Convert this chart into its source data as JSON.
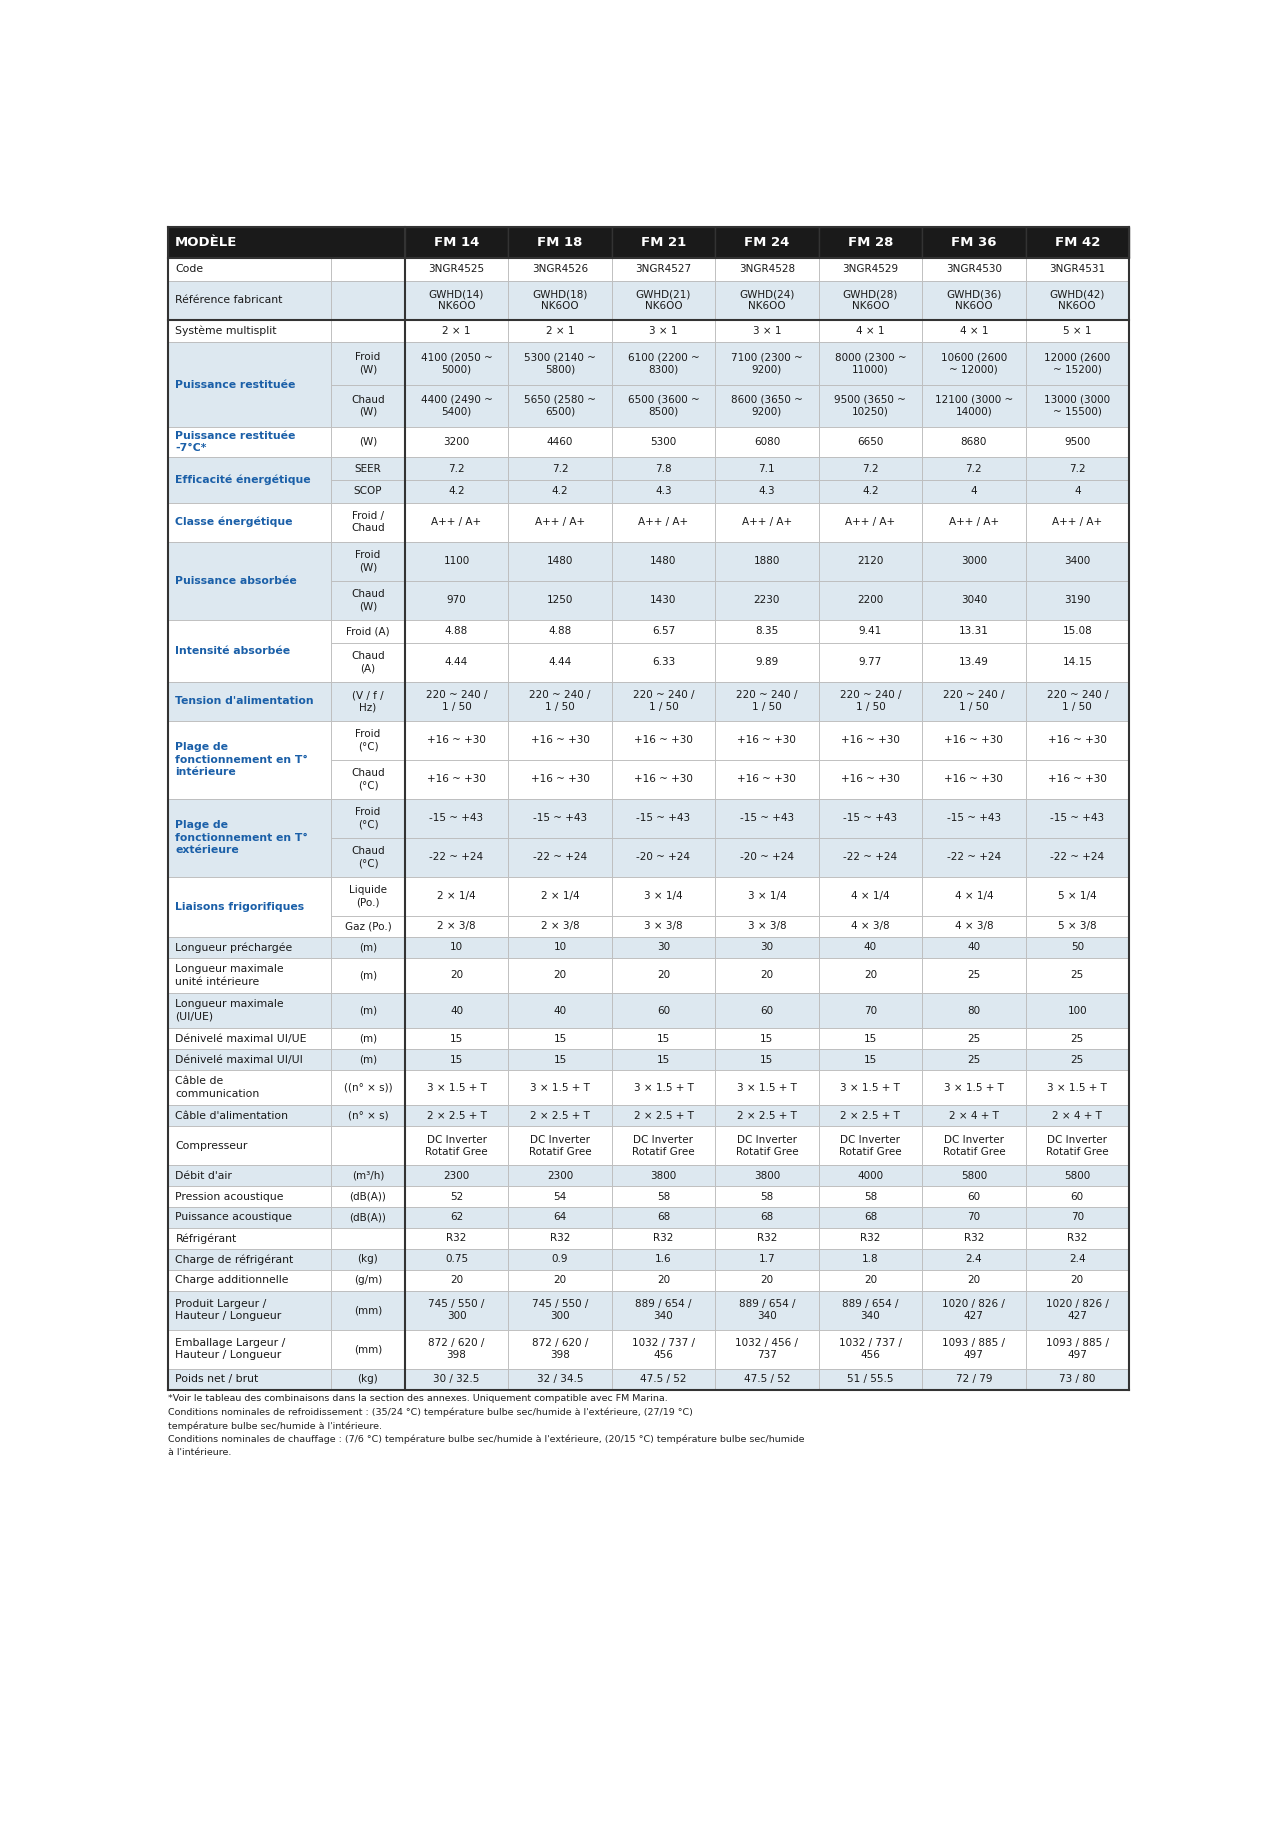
{
  "header_bg": "#1a1a1a",
  "header_fg": "#ffffff",
  "row_label_fg": "#1a5fa8",
  "cell_fg": "#1a1a1a",
  "sub_label_fg": "#1a1a1a",
  "grid_color": "#bbbbbb",
  "dark_line_color": "#333333",
  "alt_colors": [
    "#ffffff",
    "#dde8f0"
  ],
  "fm_headers": [
    "FM 14",
    "FM 18",
    "FM 21",
    "FM 24",
    "FM 28",
    "FM 36",
    "FM 42"
  ],
  "groups": [
    {
      "label": "Code",
      "label_bold": false,
      "color_idx": 0,
      "subrows": [
        {
          "sub": "",
          "values": [
            "3NGR4525",
            "3NGR4526",
            "3NGR4527",
            "3NGR4528",
            "3NGR4529",
            "3NGR4530",
            "3NGR4531"
          ]
        }
      ]
    },
    {
      "label": "Référence fabricant",
      "label_bold": false,
      "color_idx": 0,
      "subrows": [
        {
          "sub": "",
          "values": [
            "GWHD(14)\nNK6OO",
            "GWHD(18)\nNK6OO",
            "GWHD(21)\nNK6OO",
            "GWHD(24)\nNK6OO",
            "GWHD(28)\nNK6OO",
            "GWHD(36)\nNK6OO",
            "GWHD(42)\nNK6OO"
          ]
        }
      ]
    },
    {
      "label": "Système multisplit",
      "label_bold": false,
      "color_idx": 1,
      "dark_top": true,
      "subrows": [
        {
          "sub": "",
          "values": [
            "2 × 1",
            "2 × 1",
            "3 × 1",
            "3 × 1",
            "4 × 1",
            "4 × 1",
            "5 × 1"
          ]
        }
      ]
    },
    {
      "label": "Puissance restituée",
      "label_bold": true,
      "color_idx": 0,
      "subrows": [
        {
          "sub": "Froid\n(W)",
          "values": [
            "4100 (2050 ~\n5000)",
            "5300 (2140 ~\n5800)",
            "6100 (2200 ~\n8300)",
            "7100 (2300 ~\n9200)",
            "8000 (2300 ~\n11000)",
            "10600 (2600\n~ 12000)",
            "12000 (2600\n~ 15200)"
          ]
        },
        {
          "sub": "Chaud\n(W)",
          "values": [
            "4400 (2490 ~\n5400)",
            "5650 (2580 ~\n6500)",
            "6500 (3600 ~\n8500)",
            "8600 (3650 ~\n9200)",
            "9500 (3650 ~\n10250)",
            "12100 (3000 ~\n14000)",
            "13000 (3000\n~ 15500)"
          ]
        }
      ]
    },
    {
      "label": "Puissance restituée\n-7°C*",
      "label_bold": true,
      "color_idx": 0,
      "subrows": [
        {
          "sub": "(W)",
          "values": [
            "3200",
            "4460",
            "5300",
            "6080",
            "6650",
            "8680",
            "9500"
          ]
        }
      ]
    },
    {
      "label": "Efficacité énergétique",
      "label_bold": true,
      "color_idx": 0,
      "subrows": [
        {
          "sub": "SEER",
          "values": [
            "7.2",
            "7.2",
            "7.8",
            "7.1",
            "7.2",
            "7.2",
            "7.2"
          ]
        },
        {
          "sub": "SCOP",
          "values": [
            "4.2",
            "4.2",
            "4.3",
            "4.3",
            "4.2",
            "4",
            "4"
          ]
        }
      ]
    },
    {
      "label": "Classe énergétique",
      "label_bold": true,
      "color_idx": 0,
      "subrows": [
        {
          "sub": "Froid /\nChaud",
          "values": [
            "A++ / A+",
            "A++ / A+",
            "A++ / A+",
            "A++ / A+",
            "A++ / A+",
            "A++ / A+",
            "A++ / A+"
          ]
        }
      ]
    },
    {
      "label": "Puissance absorbée",
      "label_bold": true,
      "color_idx": 0,
      "subrows": [
        {
          "sub": "Froid\n(W)",
          "values": [
            "1100",
            "1480",
            "1480",
            "1880",
            "2120",
            "3000",
            "3400"
          ]
        },
        {
          "sub": "Chaud\n(W)",
          "values": [
            "970",
            "1250",
            "1430",
            "2230",
            "2200",
            "3040",
            "3190"
          ]
        }
      ]
    },
    {
      "label": "Intensité absorbée",
      "label_bold": true,
      "color_idx": 0,
      "subrows": [
        {
          "sub": "Froid (A)",
          "values": [
            "4.88",
            "4.88",
            "6.57",
            "8.35",
            "9.41",
            "13.31",
            "15.08"
          ]
        },
        {
          "sub": "Chaud\n(A)",
          "values": [
            "4.44",
            "4.44",
            "6.33",
            "9.89",
            "9.77",
            "13.49",
            "14.15"
          ]
        }
      ]
    },
    {
      "label": "Tension d'alimentation",
      "label_bold": true,
      "color_idx": 0,
      "subrows": [
        {
          "sub": "(V / f /\nHz)",
          "values": [
            "220 ~ 240 /\n1 / 50",
            "220 ~ 240 /\n1 / 50",
            "220 ~ 240 /\n1 / 50",
            "220 ~ 240 /\n1 / 50",
            "220 ~ 240 /\n1 / 50",
            "220 ~ 240 /\n1 / 50",
            "220 ~ 240 /\n1 / 50"
          ]
        }
      ]
    },
    {
      "label": "Plage de\nfonctionnement en T°\nintérieure",
      "label_bold": true,
      "color_idx": 0,
      "subrows": [
        {
          "sub": "Froid\n(°C)",
          "values": [
            "+16 ~ +30",
            "+16 ~ +30",
            "+16 ~ +30",
            "+16 ~ +30",
            "+16 ~ +30",
            "+16 ~ +30",
            "+16 ~ +30"
          ]
        },
        {
          "sub": "Chaud\n(°C)",
          "values": [
            "+16 ~ +30",
            "+16 ~ +30",
            "+16 ~ +30",
            "+16 ~ +30",
            "+16 ~ +30",
            "+16 ~ +30",
            "+16 ~ +30"
          ]
        }
      ]
    },
    {
      "label": "Plage de\nfonctionnement en T°\nextérieure",
      "label_bold": true,
      "color_idx": 0,
      "subrows": [
        {
          "sub": "Froid\n(°C)",
          "values": [
            "-15 ~ +43",
            "-15 ~ +43",
            "-15 ~ +43",
            "-15 ~ +43",
            "-15 ~ +43",
            "-15 ~ +43",
            "-15 ~ +43"
          ]
        },
        {
          "sub": "Chaud\n(°C)",
          "values": [
            "-22 ~ +24",
            "-22 ~ +24",
            "-20 ~ +24",
            "-20 ~ +24",
            "-22 ~ +24",
            "-22 ~ +24",
            "-22 ~ +24"
          ]
        }
      ]
    },
    {
      "label": "Liaisons frigorifiques",
      "label_bold": true,
      "color_idx": 0,
      "subrows": [
        {
          "sub": "Liquide\n(Po.)",
          "values": [
            "2 × 1/4",
            "2 × 1/4",
            "3 × 1/4",
            "3 × 1/4",
            "4 × 1/4",
            "4 × 1/4",
            "5 × 1/4"
          ]
        },
        {
          "sub": "Gaz (Po.)",
          "values": [
            "2 × 3/8",
            "2 × 3/8",
            "3 × 3/8",
            "3 × 3/8",
            "4 × 3/8",
            "4 × 3/8",
            "5 × 3/8"
          ]
        }
      ]
    },
    {
      "label": "Longueur préchargée",
      "label_bold": false,
      "color_idx": 0,
      "subrows": [
        {
          "sub": "(m)",
          "values": [
            "10",
            "10",
            "30",
            "30",
            "40",
            "40",
            "50"
          ]
        }
      ]
    },
    {
      "label": "Longueur maximale\nunité intérieure",
      "label_bold": false,
      "color_idx": 0,
      "subrows": [
        {
          "sub": "(m)",
          "values": [
            "20",
            "20",
            "20",
            "20",
            "20",
            "25",
            "25"
          ]
        }
      ]
    },
    {
      "label": "Longueur maximale\n(UI/UE)",
      "label_bold": false,
      "color_idx": 0,
      "subrows": [
        {
          "sub": "(m)",
          "values": [
            "40",
            "40",
            "60",
            "60",
            "70",
            "80",
            "100"
          ]
        }
      ]
    },
    {
      "label": "Dénivelé maximal UI/UE",
      "label_bold": false,
      "color_idx": 0,
      "subrows": [
        {
          "sub": "(m)",
          "values": [
            "15",
            "15",
            "15",
            "15",
            "15",
            "25",
            "25"
          ]
        }
      ]
    },
    {
      "label": "Dénivelé maximal UI/UI",
      "label_bold": false,
      "color_idx": 0,
      "subrows": [
        {
          "sub": "(m)",
          "values": [
            "15",
            "15",
            "15",
            "15",
            "15",
            "25",
            "25"
          ]
        }
      ]
    },
    {
      "label": "Câble de\ncommunication",
      "label_bold": false,
      "color_idx": 0,
      "subrows": [
        {
          "sub": "((n° × s))",
          "values": [
            "3 × 1.5 + T",
            "3 × 1.5 + T",
            "3 × 1.5 + T",
            "3 × 1.5 + T",
            "3 × 1.5 + T",
            "3 × 1.5 + T",
            "3 × 1.5 + T"
          ]
        }
      ]
    },
    {
      "label": "Câble d'alimentation",
      "label_bold": false,
      "color_idx": 0,
      "subrows": [
        {
          "sub": "(n° × s)",
          "values": [
            "2 × 2.5 + T",
            "2 × 2.5 + T",
            "2 × 2.5 + T",
            "2 × 2.5 + T",
            "2 × 2.5 + T",
            "2 × 4 + T",
            "2 × 4 + T"
          ]
        }
      ]
    },
    {
      "label": "Compresseur",
      "label_bold": false,
      "color_idx": 0,
      "subrows": [
        {
          "sub": "",
          "values": [
            "DC Inverter\nRotatif Gree",
            "DC Inverter\nRotatif Gree",
            "DC Inverter\nRotatif Gree",
            "DC Inverter\nRotatif Gree",
            "DC Inverter\nRotatif Gree",
            "DC Inverter\nRotatif Gree",
            "DC Inverter\nRotatif Gree"
          ]
        }
      ]
    },
    {
      "label": "Débit d'air",
      "label_bold": false,
      "color_idx": 0,
      "subrows": [
        {
          "sub": "(m³/h)",
          "values": [
            "2300",
            "2300",
            "3800",
            "3800",
            "4000",
            "5800",
            "5800"
          ]
        }
      ]
    },
    {
      "label": "Pression acoustique",
      "label_bold": false,
      "color_idx": 0,
      "subrows": [
        {
          "sub": "(dB(A))",
          "values": [
            "52",
            "54",
            "58",
            "58",
            "58",
            "60",
            "60"
          ]
        }
      ]
    },
    {
      "label": "Puissance acoustique",
      "label_bold": false,
      "color_idx": 0,
      "subrows": [
        {
          "sub": "(dB(A))",
          "values": [
            "62",
            "64",
            "68",
            "68",
            "68",
            "70",
            "70"
          ]
        }
      ]
    },
    {
      "label": "Réfrigérant",
      "label_bold": false,
      "color_idx": 0,
      "subrows": [
        {
          "sub": "",
          "values": [
            "R32",
            "R32",
            "R32",
            "R32",
            "R32",
            "R32",
            "R32"
          ]
        }
      ]
    },
    {
      "label": "Charge de réfrigérant",
      "label_bold": false,
      "color_idx": 0,
      "subrows": [
        {
          "sub": "(kg)",
          "values": [
            "0.75",
            "0.9",
            "1.6",
            "1.7",
            "1.8",
            "2.4",
            "2.4"
          ]
        }
      ]
    },
    {
      "label": "Charge additionnelle",
      "label_bold": false,
      "color_idx": 0,
      "subrows": [
        {
          "sub": "(g/m)",
          "values": [
            "20",
            "20",
            "20",
            "20",
            "20",
            "20",
            "20"
          ]
        }
      ]
    },
    {
      "label": "Produit Largeur /\nHauteur / Longueur",
      "label_bold": false,
      "color_idx": 0,
      "subrows": [
        {
          "sub": "(mm)",
          "values": [
            "745 / 550 /\n300",
            "745 / 550 /\n300",
            "889 / 654 /\n340",
            "889 / 654 /\n340",
            "889 / 654 /\n340",
            "1020 / 826 /\n427",
            "1020 / 826 /\n427"
          ]
        }
      ]
    },
    {
      "label": "Emballage Largeur /\nHauteur / Longueur",
      "label_bold": false,
      "color_idx": 0,
      "subrows": [
        {
          "sub": "(mm)",
          "values": [
            "872 / 620 /\n398",
            "872 / 620 /\n398",
            "1032 / 737 /\n456",
            "1032 / 456 /\n737",
            "1032 / 737 /\n456",
            "1093 / 885 /\n497",
            "1093 / 885 /\n497"
          ]
        }
      ]
    },
    {
      "label": "Poids net / brut",
      "label_bold": false,
      "color_idx": 0,
      "subrows": [
        {
          "sub": "(kg)",
          "values": [
            "30 / 32.5",
            "32 / 34.5",
            "47.5 / 52",
            "47.5 / 52",
            "51 / 55.5",
            "72 / 79",
            "73 / 80"
          ]
        }
      ]
    }
  ],
  "footnotes": [
    "*Voir le tableau des combinaisons dans la section des annexes. Uniquement compatible avec FM Marina.",
    "Conditions nominales de refroidissement : (35/24 °C) température bulbe sec/humide à l'extérieure, (27/19 °C)",
    "température bulbe sec/humide à l'intérieure.",
    "Conditions nominales de chauffage : (7/6 °C) température bulbe sec/humide à l'extérieure, (20/15 °C) température bulbe sec/humide",
    "à l'intérieure."
  ]
}
